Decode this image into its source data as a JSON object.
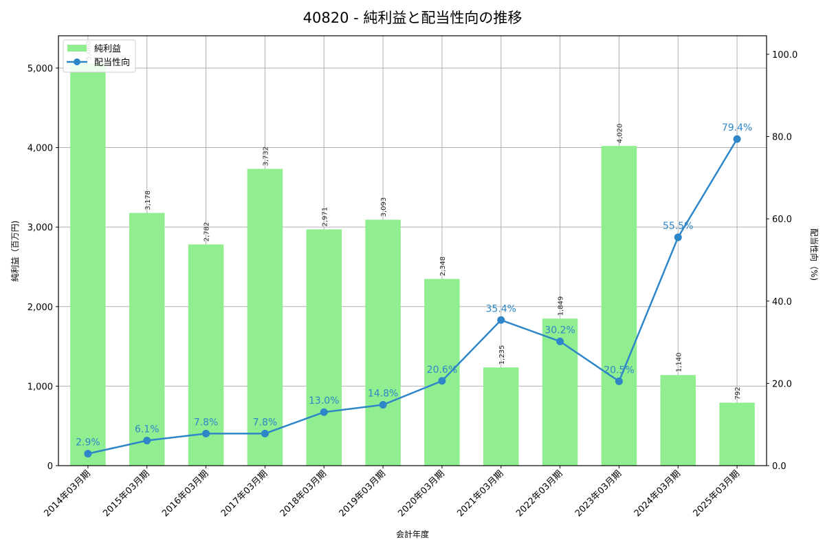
{
  "chart_data": {
    "type": "bar+line",
    "title": "40820 - 純利益と配当性向の推移",
    "xlabel": "会計年度",
    "ylabel": "純利益（百万円)",
    "ylabel_right": "配当性向（%)",
    "categories": [
      "2014年03月期",
      "2015年03月期",
      "2016年03月期",
      "2017年03月期",
      "2018年03月期",
      "2019年03月期",
      "2020年03月期",
      "2021年03月期",
      "2022年03月期",
      "2023年03月期",
      "2024年03月期",
      "2025年03月期"
    ],
    "series": [
      {
        "name": "純利益",
        "type": "bar",
        "axis": "left",
        "color": "#90ee90",
        "values": [
          5060,
          3178,
          2782,
          3732,
          2971,
          3093,
          2348,
          1235,
          1849,
          4020,
          1140,
          792
        ],
        "labels": [
          "5,060",
          "3,178",
          "2,782",
          "3,732",
          "2,971",
          "3,093",
          "2,348",
          "1,235",
          "1,849",
          "4,020",
          "1,140",
          "792"
        ]
      },
      {
        "name": "配当性向",
        "type": "line",
        "axis": "right",
        "color": "#2e86c8",
        "values": [
          2.9,
          6.1,
          7.8,
          7.8,
          13.0,
          14.8,
          20.6,
          35.4,
          30.2,
          20.5,
          55.5,
          79.4
        ],
        "labels": [
          "2.9%",
          "6.1%",
          "7.8%",
          "7.8%",
          "13.0%",
          "14.8%",
          "20.6%",
          "35.4%",
          "30.2%",
          "20.5%",
          "55.5%",
          "79.4%"
        ]
      }
    ],
    "ylim": [
      0,
      5406
    ],
    "ylim_right": [
      0,
      104.5
    ],
    "yticks": [
      0,
      1000,
      2000,
      3000,
      4000,
      5000
    ],
    "ytick_labels": [
      "0",
      "1,000",
      "2,000",
      "3,000",
      "4,000",
      "5,000"
    ],
    "yticks_right": [
      0,
      20,
      40,
      60,
      80,
      100
    ],
    "ytick_labels_right": [
      "0.0",
      "20.0",
      "40.0",
      "60.0",
      "80.0",
      "100.0"
    ],
    "grid": true,
    "legend": "top-left"
  }
}
